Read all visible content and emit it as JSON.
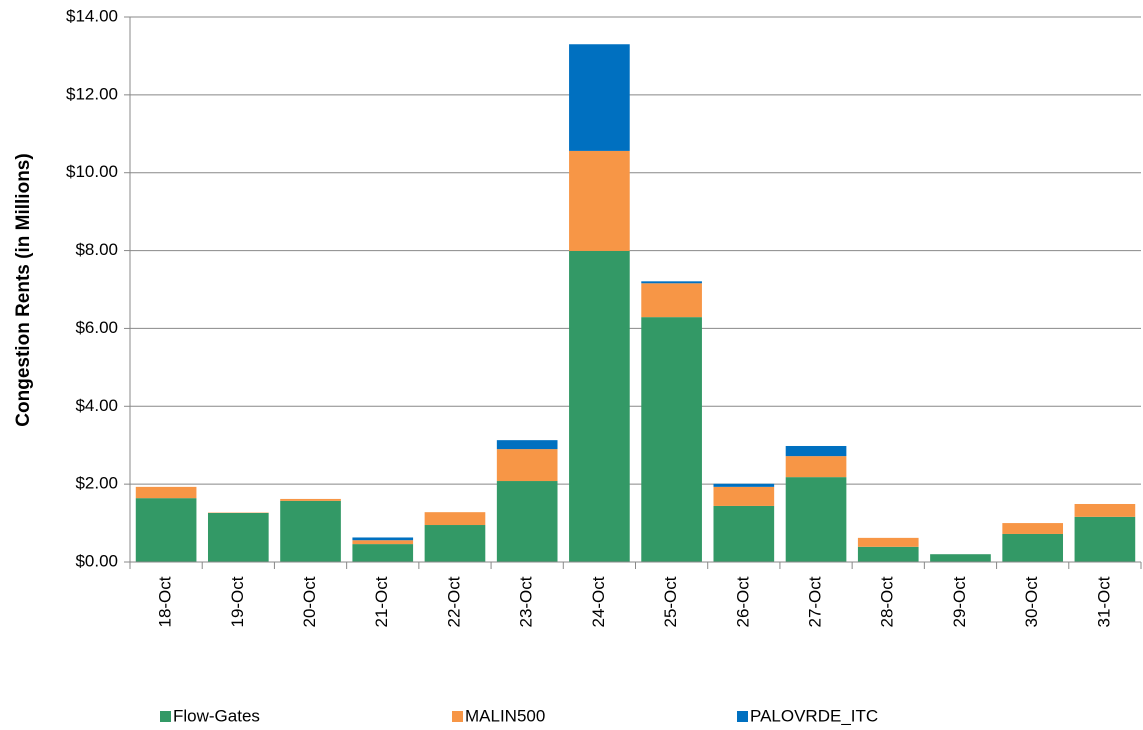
{
  "chart_data": {
    "type": "stacked_bar",
    "y_label": "Congestion Rents (in Millions)",
    "categories": [
      "18-Oct",
      "19-Oct",
      "20-Oct",
      "21-Oct",
      "22-Oct",
      "23-Oct",
      "24-Oct",
      "25-Oct",
      "26-Oct",
      "27-Oct",
      "28-Oct",
      "29-Oct",
      "30-Oct",
      "31-Oct"
    ],
    "series": [
      {
        "name": "Flow-Gates",
        "color": "#339966",
        "values": [
          1.64,
          1.26,
          1.57,
          0.46,
          0.95,
          2.08,
          7.99,
          6.29,
          1.44,
          2.18,
          0.39,
          0.2,
          0.72,
          1.16
        ]
      },
      {
        "name": "MALIN500",
        "color": "#f79646",
        "values": [
          0.29,
          0.01,
          0.05,
          0.1,
          0.33,
          0.82,
          2.57,
          0.87,
          0.49,
          0.54,
          0.23,
          0,
          0.28,
          0.33
        ]
      },
      {
        "name": "PALOVRDE_ITC",
        "color": "#0070c0",
        "values": [
          0,
          0,
          0,
          0.07,
          0,
          0.23,
          2.74,
          0.05,
          0.08,
          0.26,
          0,
          0,
          0,
          0
        ]
      }
    ],
    "ylim": [
      0,
      14
    ],
    "yticks": [
      {
        "value": 0,
        "label": "$0.00"
      },
      {
        "value": 2,
        "label": "$2.00"
      },
      {
        "value": 4,
        "label": "$4.00"
      },
      {
        "value": 6,
        "label": "$6.00"
      },
      {
        "value": 8,
        "label": "$8.00"
      },
      {
        "value": 10,
        "label": "$10.00"
      },
      {
        "value": 12,
        "label": "$12.00"
      },
      {
        "value": 14,
        "label": "$14.00"
      }
    ],
    "grid": true,
    "legend": "bottom"
  }
}
